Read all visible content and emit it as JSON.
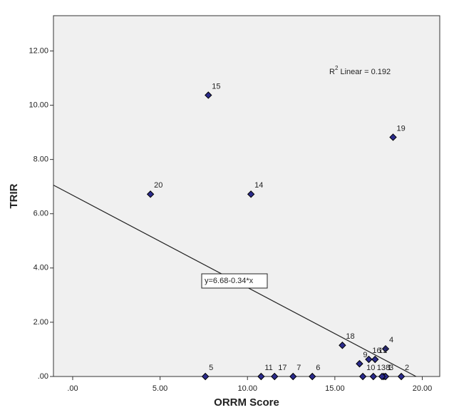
{
  "chart_data": {
    "type": "scatter",
    "x_label": "ORRM Score",
    "y_label": "TRIR",
    "x": [
      17.8,
      18.8,
      17.9,
      17.9,
      7.59,
      13.71,
      12.61,
      17.7,
      16.41,
      16.6,
      10.78,
      17.3,
      17.2,
      10.2,
      7.76,
      16.94,
      11.55,
      15.43,
      18.33,
      4.45
    ],
    "values": [
      0,
      0,
      0,
      1.02,
      0,
      0,
      0,
      0,
      0.47,
      0,
      0,
      0.63,
      0,
      6.72,
      10.37,
      0.63,
      0,
      1.15,
      8.82,
      6.72
    ],
    "labels": [
      "1",
      "2",
      "3",
      "4",
      "5",
      "6",
      "7",
      "8",
      "9",
      "10",
      "11",
      "12",
      "13",
      "14",
      "15",
      "16",
      "17",
      "18",
      "19",
      "20"
    ],
    "color": "#2b2b8c",
    "xlim": [
      -1.1,
      21.0
    ],
    "ylim": [
      0,
      13.3
    ],
    "xticks": [
      {
        "value": 0,
        "label": ".00"
      },
      {
        "value": 5,
        "label": "5.00"
      },
      {
        "value": 10,
        "label": "10.00"
      },
      {
        "value": 15,
        "label": "15.00"
      },
      {
        "value": 20,
        "label": "20.00"
      }
    ],
    "yticks": [
      {
        "value": 0,
        "label": ".00"
      },
      {
        "value": 2,
        "label": "2.00"
      },
      {
        "value": 4,
        "label": "4.00"
      },
      {
        "value": 6,
        "label": "6.00"
      },
      {
        "value": 8,
        "label": "8.00"
      },
      {
        "value": 10,
        "label": "10.00"
      },
      {
        "value": 12,
        "label": "12.00"
      }
    ],
    "fit": {
      "intercept": 6.68,
      "slope": -0.34,
      "label": "y=6.68-0.34*x"
    },
    "r2": {
      "base": "R",
      "sup": "2",
      "rest": " Linear = 0.192"
    }
  }
}
